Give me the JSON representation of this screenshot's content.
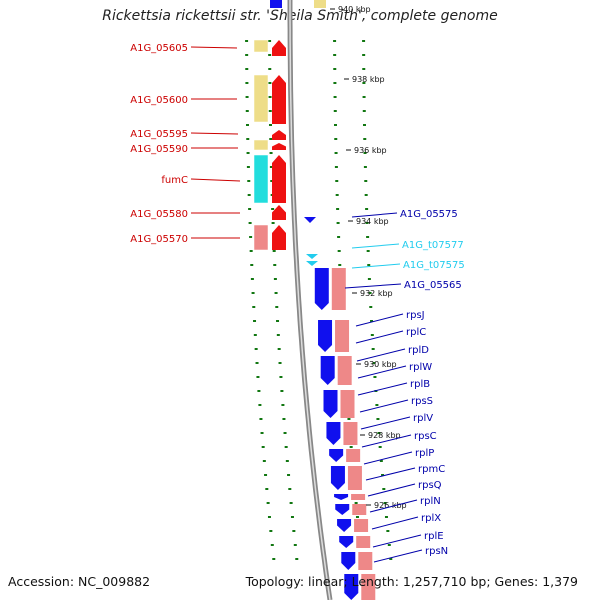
{
  "title": "Rickettsia rickettsii str. 'Sheila Smith', complete genome",
  "footer": {
    "accession": "Accession: NC_009882",
    "summary": "Topology: linear; Length: 1,257,710 bp; Genes: 1,379"
  },
  "colors": {
    "forward_cds": "#ee1111",
    "reverse_cds": "#1010ee",
    "forward_label": "#cc0000",
    "reverse_label": "#0000aa",
    "trna": "#22ccee",
    "pink_track": "#ee8888",
    "yellow_track": "#eedd88",
    "cyan_track": "#22dddd",
    "gc_dots": "#117711",
    "backbone": "#888888"
  },
  "ticks": [
    "940 kbp",
    "938 kbp",
    "936 kbp",
    "934 kbp",
    "932 kbp",
    "930 kbp",
    "928 kbp",
    "926 kbp"
  ],
  "left_genes": [
    "A1G_05605",
    "A1G_05600",
    "A1G_05595",
    "A1G_05590",
    "fumC",
    "A1G_05580",
    "A1G_05570"
  ],
  "right_genes": [
    {
      "name": "A1G_05575",
      "kind": "cds"
    },
    {
      "name": "A1G_t07577",
      "kind": "trna"
    },
    {
      "name": "A1G_t07575",
      "kind": "trna"
    },
    {
      "name": "A1G_05565",
      "kind": "cds"
    },
    {
      "name": "rpsJ",
      "kind": "cds"
    },
    {
      "name": "rplC",
      "kind": "cds"
    },
    {
      "name": "rplD",
      "kind": "cds"
    },
    {
      "name": "rplW",
      "kind": "cds"
    },
    {
      "name": "rplB",
      "kind": "cds"
    },
    {
      "name": "rpsS",
      "kind": "cds"
    },
    {
      "name": "rplV",
      "kind": "cds"
    },
    {
      "name": "rpsC",
      "kind": "cds"
    },
    {
      "name": "rplP",
      "kind": "cds"
    },
    {
      "name": "rpmC",
      "kind": "cds"
    },
    {
      "name": "rpsQ",
      "kind": "cds"
    },
    {
      "name": "rplN",
      "kind": "cds"
    },
    {
      "name": "rplX",
      "kind": "cds"
    },
    {
      "name": "rplE",
      "kind": "cds"
    },
    {
      "name": "rpsN",
      "kind": "cds"
    }
  ]
}
